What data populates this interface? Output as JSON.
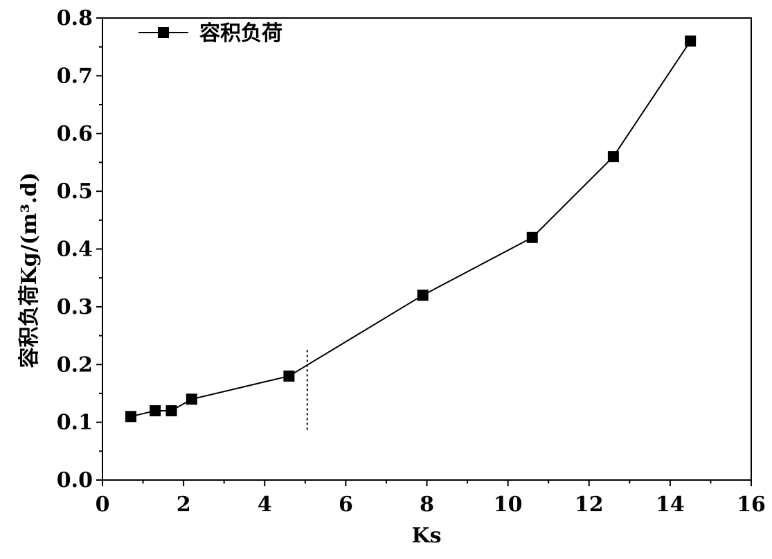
{
  "chart_data": {
    "type": "line",
    "title": "",
    "xlabel": "Ks",
    "ylabel": "容积负荷Kg/(m³.d)",
    "xlim": [
      0,
      16
    ],
    "ylim": [
      0.0,
      0.8
    ],
    "x_ticks": [
      "0",
      "2",
      "4",
      "6",
      "8",
      "10",
      "12",
      "14",
      "16"
    ],
    "y_ticks": [
      "0.0",
      "0.1",
      "0.2",
      "0.3",
      "0.4",
      "0.5",
      "0.6",
      "0.7",
      "0.8"
    ],
    "legend_position": "top-left",
    "grid": false,
    "marker": "square",
    "color": "#000000",
    "vertical_reference_line": {
      "x": 5.05,
      "y_range": [
        0.085,
        0.225
      ],
      "style": "dotted"
    },
    "series": [
      {
        "name": "容积负荷",
        "x": [
          0.7,
          1.3,
          1.7,
          2.2,
          4.6,
          7.9,
          10.6,
          12.6,
          14.5
        ],
        "y": [
          0.11,
          0.12,
          0.12,
          0.14,
          0.18,
          0.32,
          0.42,
          0.56,
          0.76
        ]
      }
    ]
  }
}
